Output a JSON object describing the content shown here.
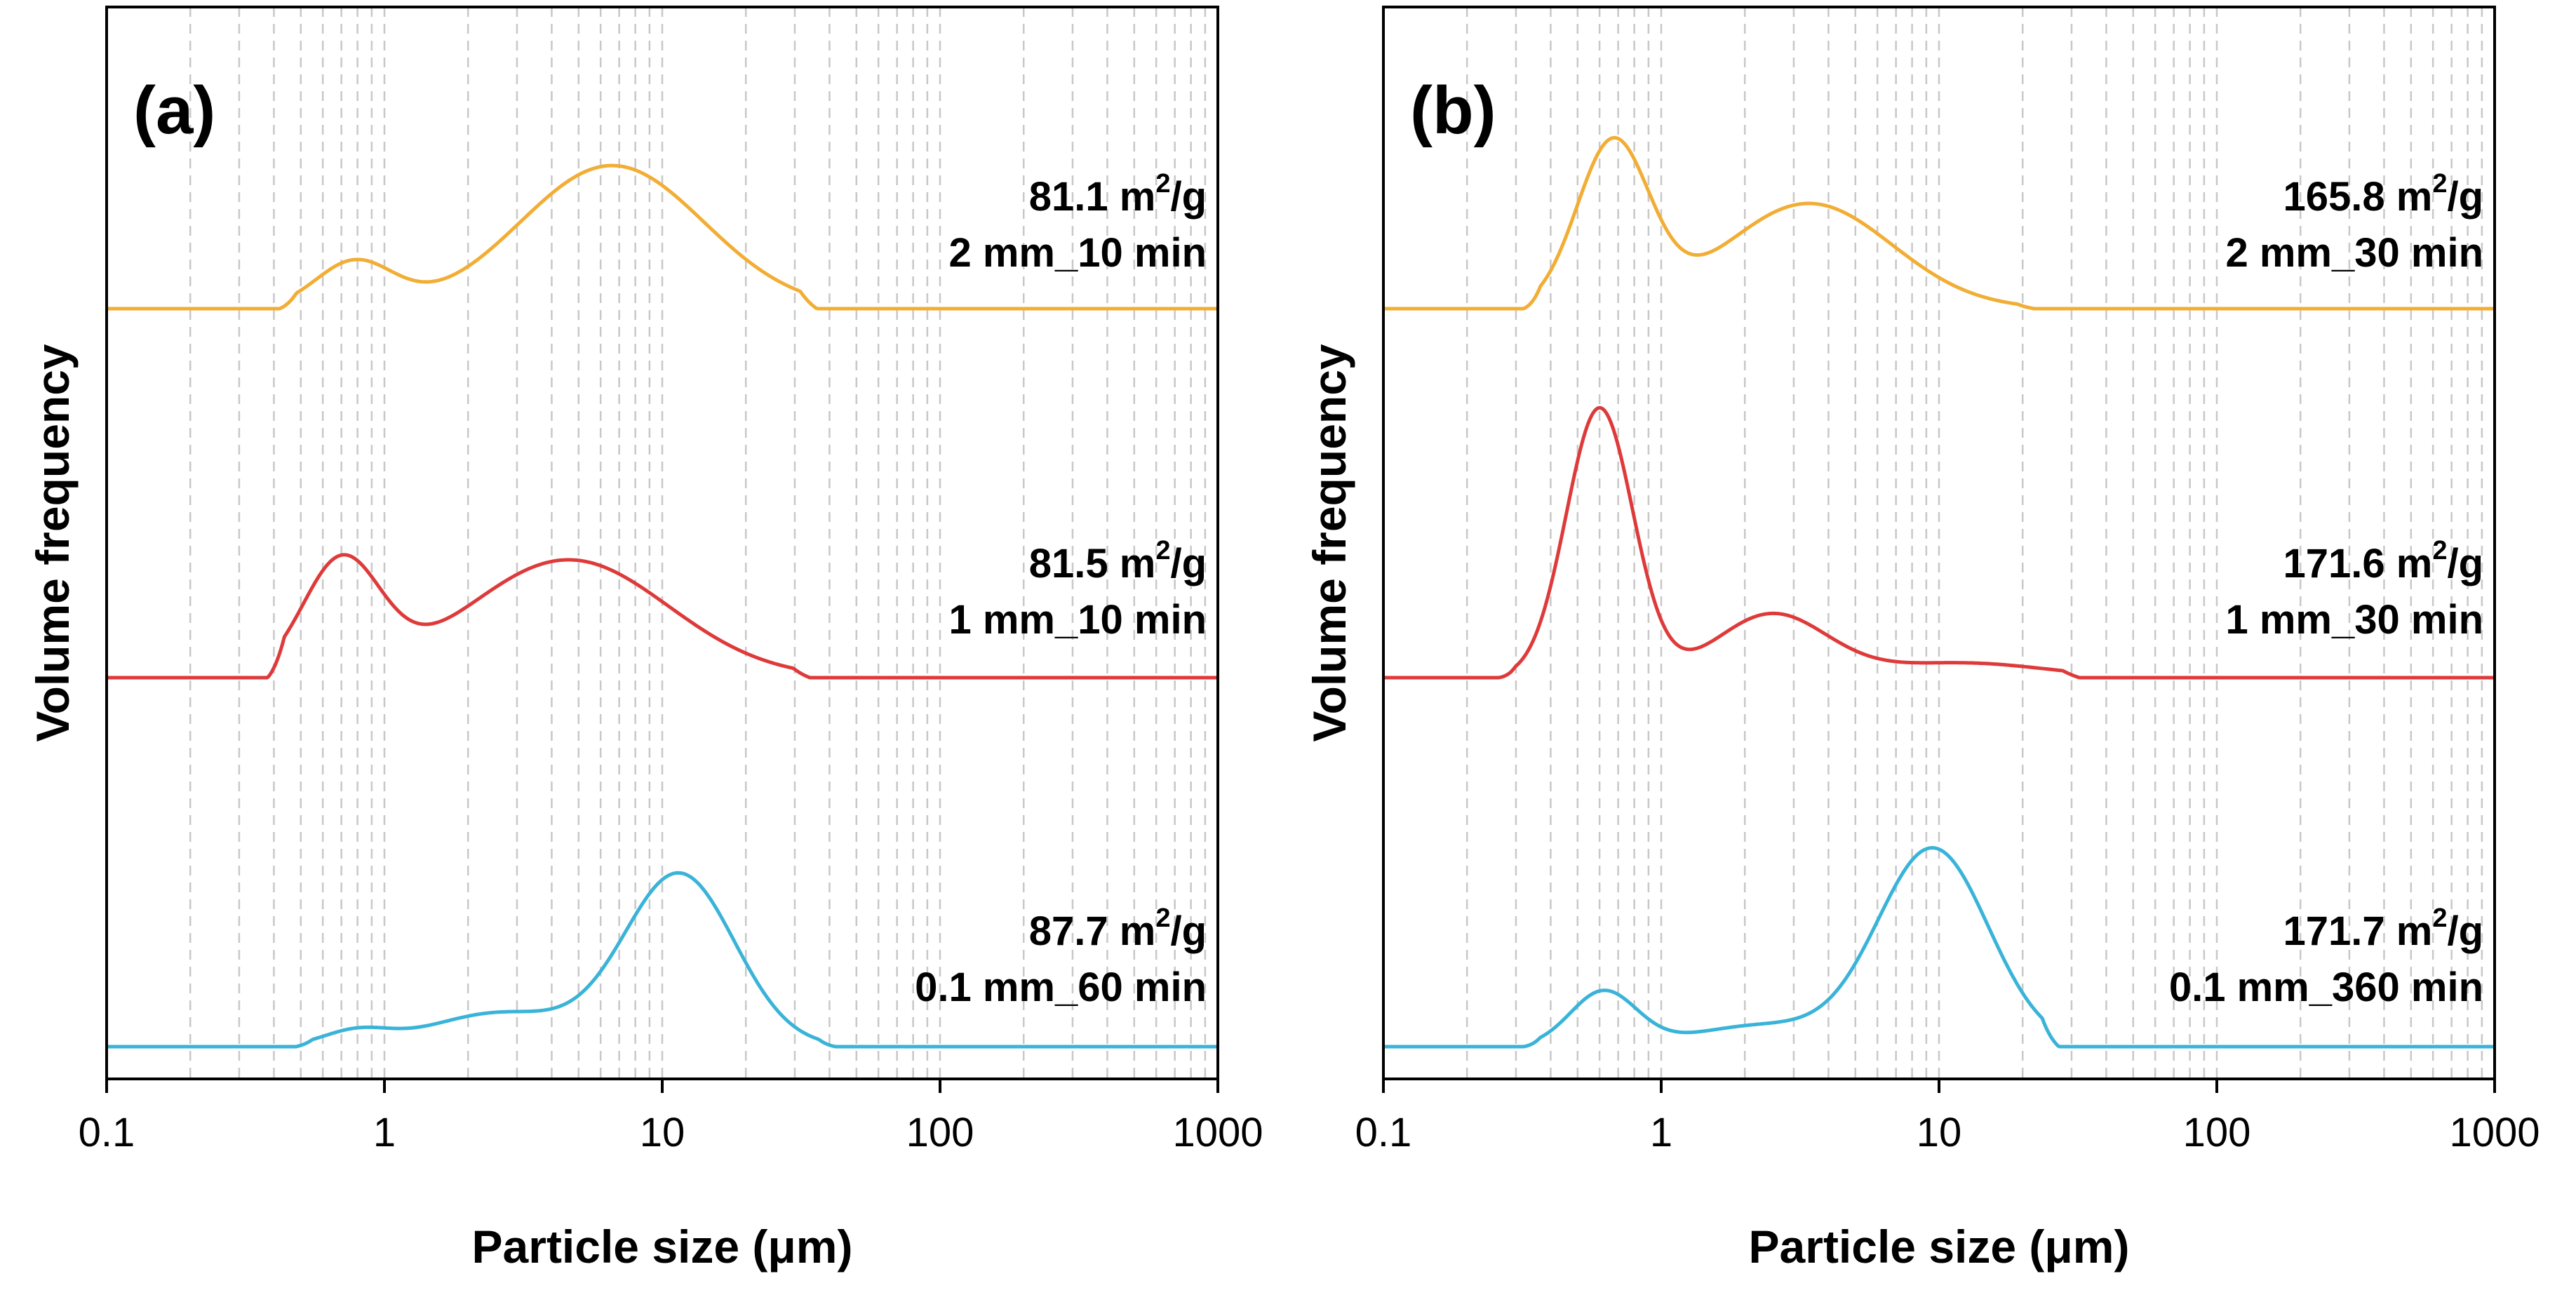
{
  "chart_data": [
    {
      "type": "line",
      "panel_label": "(a)",
      "xlabel": "Particle size (μm)",
      "ylabel": "Volume frequency",
      "xscale": "log",
      "xlim": [
        0.1,
        1000
      ],
      "x_ticks": [
        "0.1",
        "1",
        "10",
        "100",
        "1000"
      ],
      "grid": "vertical dashed at 1-2-…-9 per decade",
      "series": [
        {
          "name": "2 mm_10 min",
          "surface_area": "81.1 m",
          "unit_sup": "2",
          "unit_tail": "/g",
          "color": "#f2ad35",
          "peaks": [
            {
              "center_um": 0.78,
              "height": 0.11,
              "width_dec": 0.14
            },
            {
              "center_um": 6.6,
              "height": 0.34,
              "width_dec": 0.33
            }
          ],
          "floor_um": 0.42,
          "ceiling_um": 36
        },
        {
          "name": "1 mm_10 min",
          "surface_area": "81.5 m",
          "unit_sup": "2",
          "unit_tail": "/g",
          "color": "#de3a3a",
          "peaks": [
            {
              "center_um": 0.7,
              "height": 0.27,
              "width_dec": 0.14
            },
            {
              "center_um": 4.6,
              "height": 0.28,
              "width_dec": 0.36
            }
          ],
          "floor_um": 0.38,
          "ceiling_um": 34
        },
        {
          "name": "0.1 mm_60 min",
          "surface_area": "87.7 m",
          "unit_sup": "2",
          "unit_tail": "/g",
          "color": "#3ab3d8",
          "peaks": [
            {
              "center_um": 0.79,
              "height": 0.035,
              "width_dec": 0.12
            },
            {
              "center_um": 2.6,
              "height": 0.08,
              "width_dec": 0.25
            },
            {
              "center_um": 11.5,
              "height": 0.41,
              "width_dec": 0.2
            }
          ],
          "floor_um": 0.48,
          "ceiling_um": 42
        }
      ]
    },
    {
      "type": "line",
      "panel_label": "(b)",
      "xlabel": "Particle size (μm)",
      "ylabel": "Volume frequency",
      "xscale": "log",
      "xlim": [
        0.1,
        1000
      ],
      "x_ticks": [
        "0.1",
        "1",
        "10",
        "100",
        "1000"
      ],
      "grid": "vertical dashed at 1-2-…-9 per decade",
      "series": [
        {
          "name": "2 mm_30 min",
          "surface_area": "165.8 m",
          "unit_sup": "2",
          "unit_tail": "/g",
          "color": "#f2ad35",
          "peaks": [
            {
              "center_um": 0.67,
              "height": 0.39,
              "width_dec": 0.13
            },
            {
              "center_um": 3.4,
              "height": 0.25,
              "width_dec": 0.3
            }
          ],
          "floor_um": 0.32,
          "ceiling_um": 22
        },
        {
          "name": "1 mm_30 min",
          "surface_area": "171.6 m",
          "unit_sup": "2",
          "unit_tail": "/g",
          "color": "#de3a3a",
          "peaks": [
            {
              "center_um": 0.6,
              "height": 0.64,
              "width_dec": 0.12
            },
            {
              "center_um": 2.5,
              "height": 0.15,
              "width_dec": 0.2
            },
            {
              "center_um": 12,
              "height": 0.035,
              "width_dec": 0.3
            }
          ],
          "floor_um": 0.26,
          "ceiling_um": 32
        },
        {
          "name": "0.1 mm_360 min",
          "surface_area": "171.7 m",
          "unit_sup": "2",
          "unit_tail": "/g",
          "color": "#3ab3d8",
          "peaks": [
            {
              "center_um": 0.62,
              "height": 0.13,
              "width_dec": 0.12
            },
            {
              "center_um": 2.3,
              "height": 0.05,
              "width_dec": 0.25
            },
            {
              "center_um": 9.5,
              "height": 0.47,
              "width_dec": 0.2
            }
          ],
          "floor_um": 0.32,
          "ceiling_um": 27
        }
      ]
    }
  ]
}
